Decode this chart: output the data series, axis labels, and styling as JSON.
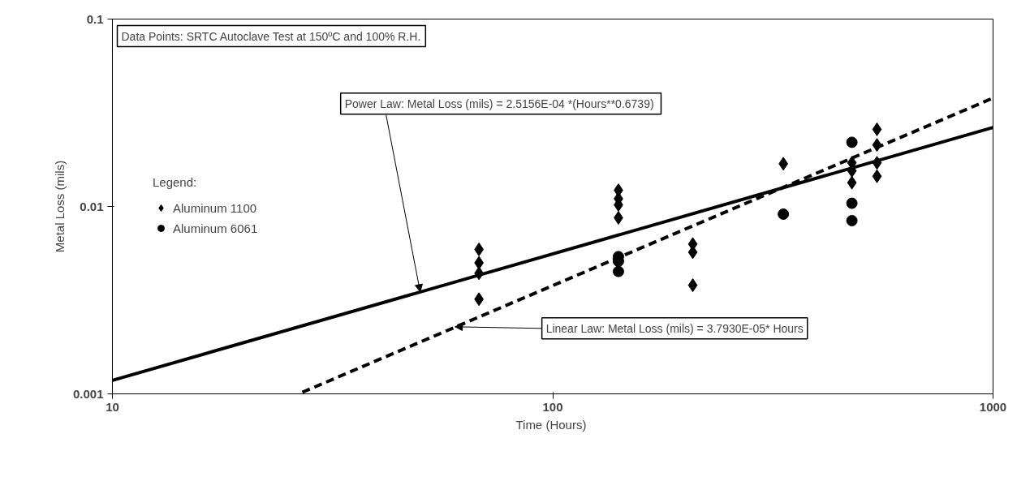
{
  "chart_data": {
    "type": "scatter",
    "xlabel": "Time  (Hours)",
    "ylabel": "Metal Loss (mils)",
    "log": "xy",
    "xlim": [
      10,
      1000
    ],
    "xticks": [
      10,
      100,
      1000
    ],
    "ylim": [
      0.001,
      0.1
    ],
    "yticks": [
      0.001,
      0.01,
      0.1
    ],
    "grid": false,
    "legend": "left",
    "legend_title": "Legend:",
    "series": [
      {
        "name": "Aluminum 1100",
        "marker": "diamond",
        "color": "#000000",
        "x": [
          68,
          68,
          68,
          68,
          141,
          141,
          141,
          141,
          208,
          208,
          208,
          334,
          478,
          478,
          478,
          545,
          545,
          545,
          545
        ],
        "values": [
          0.0059,
          0.005,
          0.0044,
          0.0032,
          0.0122,
          0.011,
          0.0102,
          0.0087,
          0.0063,
          0.0057,
          0.0038,
          0.0169,
          0.0171,
          0.0155,
          0.0134,
          0.0258,
          0.0213,
          0.0171,
          0.0145
        ]
      },
      {
        "name": "Aluminum 6061",
        "marker": "circle",
        "color": "#000000",
        "x": [
          141,
          141,
          141,
          334,
          478,
          478,
          478
        ],
        "values": [
          0.0054,
          0.0051,
          0.0045,
          0.0091,
          0.022,
          0.0104,
          0.0084
        ]
      },
      {
        "type": "line",
        "line_style": "solid",
        "color": "#000000",
        "x": [
          10,
          1000
        ],
        "values": [
          0.00118,
          0.0264
        ]
      },
      {
        "type": "line",
        "line_style": "dashed",
        "color": "#000000",
        "x": [
          27,
          1000
        ],
        "values": [
          0.00102,
          0.0379
        ]
      }
    ],
    "annotations": [
      "Data Points: SRTC Autoclave Test at 150ºC and 100% R.H.",
      {
        "text": "Power Law:  Metal Loss (mils) = 2.5156E-04 *(Hours**0.6739)",
        "x": 50,
        "y": 0.0035
      },
      {
        "text": "Linear Law: Metal Loss (mils) = 3.7930E-05* Hours",
        "x": 60,
        "y": 0.00228
      }
    ]
  }
}
